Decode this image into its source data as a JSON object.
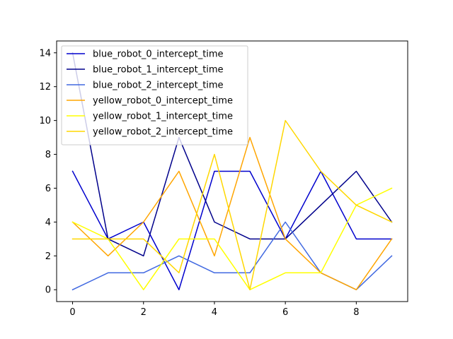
{
  "chart_data": {
    "type": "line",
    "title": "",
    "xlabel": "",
    "ylabel": "",
    "x": [
      0,
      1,
      2,
      3,
      4,
      5,
      6,
      7,
      8,
      9
    ],
    "xlim": [
      -0.45,
      9.45
    ],
    "ylim": [
      -0.7,
      14.7
    ],
    "xticks": [
      0,
      2,
      4,
      6,
      8
    ],
    "yticks": [
      0,
      2,
      4,
      6,
      8,
      10,
      12,
      14
    ],
    "grid": false,
    "legend_position": "top-left",
    "series": [
      {
        "name": "blue_robot_0_intercept_time",
        "color": "#0000cd",
        "values": [
          7,
          3,
          4,
          0,
          7,
          7,
          3,
          7,
          3,
          3
        ]
      },
      {
        "name": "blue_robot_1_intercept_time",
        "color": "#00008b",
        "values": [
          14,
          3,
          2,
          9,
          4,
          3,
          3,
          5,
          7,
          4
        ]
      },
      {
        "name": "blue_robot_2_intercept_time",
        "color": "#4169e1",
        "values": [
          0,
          1,
          1,
          2,
          1,
          1,
          4,
          1,
          0,
          2
        ]
      },
      {
        "name": "yellow_robot_0_intercept_time",
        "color": "#ffa500",
        "values": [
          4,
          2,
          4,
          7,
          2,
          9,
          3,
          1,
          0,
          3
        ]
      },
      {
        "name": "yellow_robot_1_intercept_time",
        "color": "#ffff00",
        "values": [
          4,
          3,
          0,
          3,
          3,
          0,
          1,
          1,
          5,
          6
        ]
      },
      {
        "name": "yellow_robot_2_intercept_time",
        "color": "#ffd700",
        "values": [
          3,
          3,
          3,
          1,
          8,
          0,
          10,
          7,
          5,
          4
        ]
      }
    ]
  }
}
